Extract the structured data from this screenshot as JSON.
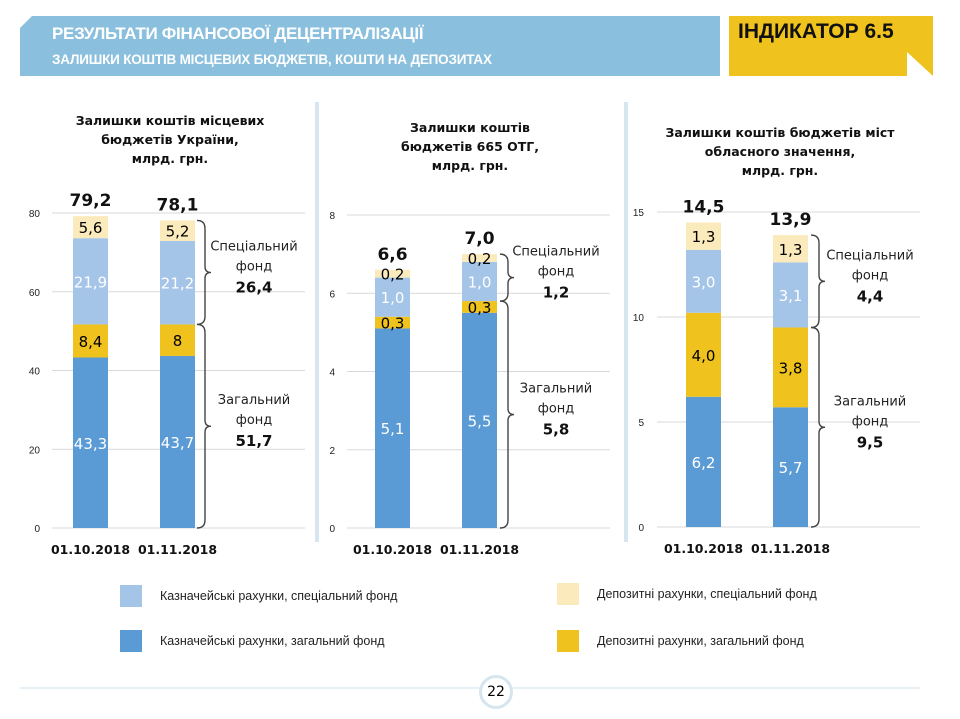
{
  "header": {
    "title": "РЕЗУЛЬТАТИ ФІНАНСОВОЇ ДЕЦЕНТРАЛІЗАЦІЇ",
    "subtitle": "ЗАЛИШКИ КОШТІВ МІСЦЕВИХ БЮДЖЕТІВ, КОШТИ НА ДЕПОЗИТАХ",
    "indicator": "ІНДИКАТОР 6.5",
    "banner_color": "#8abfdd",
    "indicator_color": "#efc21d"
  },
  "colors": {
    "treasury_general": "#5b9bd5",
    "deposit_general": "#efc21d",
    "treasury_special": "#a4c4e8",
    "deposit_special": "#fbeabb"
  },
  "legend": [
    {
      "key": "treasury_special",
      "label": "Казначейські рахунки, спеціальний фонд"
    },
    {
      "key": "deposit_special",
      "label": "Депозитні рахунки, спеціальний фонд"
    },
    {
      "key": "treasury_general",
      "label": "Казначейські рахунки, загальний фонд"
    },
    {
      "key": "deposit_general",
      "label": "Депозитні рахунки, загальний фонд"
    }
  ],
  "chart_data": [
    {
      "type": "bar",
      "stacked": true,
      "title_lines": [
        "Залишки коштів місцевих",
        "бюджетів України,",
        "млрд. грн."
      ],
      "categories": [
        "01.10.2018",
        "01.11.2018"
      ],
      "ylim": [
        0,
        80
      ],
      "yticks": [
        0,
        20,
        40,
        60,
        80
      ],
      "totals": [
        "79,2",
        "78,1"
      ],
      "series": [
        {
          "name": "Казначейські рахунки, загальний фонд",
          "key": "treasury_general",
          "values": [
            43.3,
            43.7
          ],
          "labels": [
            "43,3",
            "43,7"
          ]
        },
        {
          "name": "Депозитні рахунки, загальний фонд",
          "key": "deposit_general",
          "values": [
            8.4,
            8.0
          ],
          "labels": [
            "8,4",
            "8"
          ]
        },
        {
          "name": "Казначейські рахунки, спеціальний фонд",
          "key": "treasury_special",
          "values": [
            21.9,
            21.2
          ],
          "labels": [
            "21,9",
            "21,2"
          ]
        },
        {
          "name": "Депозитні рахунки, спеціальний фонд",
          "key": "deposit_special",
          "values": [
            5.6,
            5.2
          ],
          "labels": [
            "5,6",
            "5,2"
          ]
        }
      ],
      "annotations": {
        "special": {
          "label_lines": [
            "Спеціальний",
            "фонд"
          ],
          "value": "26,4"
        },
        "general": {
          "label_lines": [
            "Загальний",
            "фонд"
          ],
          "value": "51,7"
        }
      },
      "grid": true
    },
    {
      "type": "bar",
      "stacked": true,
      "title_lines": [
        "Залишки коштів",
        "бюджетів 665 ОТГ,",
        "млрд. грн."
      ],
      "categories": [
        "01.10.2018",
        "01.11.2018"
      ],
      "ylim": [
        0,
        8
      ],
      "yticks": [
        0,
        2,
        4,
        6,
        8
      ],
      "totals": [
        "6,6",
        "7,0"
      ],
      "series": [
        {
          "name": "Казначейські рахунки, загальний фонд",
          "key": "treasury_general",
          "values": [
            5.1,
            5.5
          ],
          "labels": [
            "5,1",
            "5,5"
          ]
        },
        {
          "name": "Депозитні рахунки, загальний фонд",
          "key": "deposit_general",
          "values": [
            0.3,
            0.3
          ],
          "labels": [
            "0,3",
            "0,3"
          ]
        },
        {
          "name": "Казначейські рахунки, спеціальний фонд",
          "key": "treasury_special",
          "values": [
            1.0,
            1.0
          ],
          "labels": [
            "1,0",
            "1,0"
          ]
        },
        {
          "name": "Депозитні рахунки, спеціальний фонд",
          "key": "deposit_special",
          "values": [
            0.2,
            0.2
          ],
          "labels": [
            "0,2",
            "0,2"
          ]
        }
      ],
      "annotations": {
        "special": {
          "label_lines": [
            "Спеціальний",
            "фонд"
          ],
          "value": "1,2"
        },
        "general": {
          "label_lines": [
            "Загальний",
            "фонд"
          ],
          "value": "5,8"
        }
      },
      "grid": true
    },
    {
      "type": "bar",
      "stacked": true,
      "title_lines": [
        "Залишки коштів бюджетів міст",
        "обласного значення,",
        "млрд. грн."
      ],
      "categories": [
        "01.10.2018",
        "01.11.2018"
      ],
      "ylim": [
        0,
        15
      ],
      "yticks": [
        0,
        5,
        10,
        15
      ],
      "totals": [
        "14,5",
        "13,9"
      ],
      "series": [
        {
          "name": "Казначейські рахунки, загальний фонд",
          "key": "treasury_general",
          "values": [
            6.2,
            5.7
          ],
          "labels": [
            "6,2",
            "5,7"
          ]
        },
        {
          "name": "Депозитні рахунки, загальний фонд",
          "key": "deposit_general",
          "values": [
            4.0,
            3.8
          ],
          "labels": [
            "4,0",
            "3,8"
          ]
        },
        {
          "name": "Казначейські рахунки, спеціальний фонд",
          "key": "treasury_special",
          "values": [
            3.0,
            3.1
          ],
          "labels": [
            "3,0",
            "3,1"
          ]
        },
        {
          "name": "Депозитні рахунки, спеціальний фонд",
          "key": "deposit_special",
          "values": [
            1.3,
            1.3
          ],
          "labels": [
            "1,3",
            "1,3"
          ]
        }
      ],
      "annotations": {
        "special": {
          "label_lines": [
            "Спеціальний",
            "фонд"
          ],
          "value": "4,4"
        },
        "general": {
          "label_lines": [
            "Загальний",
            "фонд"
          ],
          "value": "9,5"
        }
      },
      "grid": true
    }
  ],
  "footer": {
    "page_number": "22"
  }
}
